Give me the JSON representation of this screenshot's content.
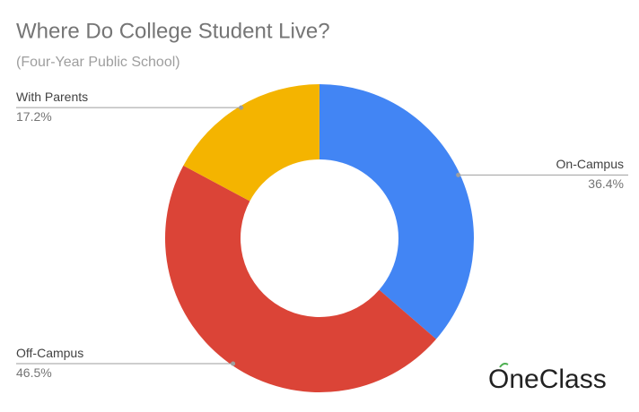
{
  "chart_data": {
    "type": "pie",
    "title": "Where Do College Student Live?",
    "subtitle": "(Four-Year Public School)",
    "categories": [
      "On-Campus",
      "Off-Campus",
      "With Parents"
    ],
    "values": [
      36.4,
      46.5,
      17.2
    ],
    "value_labels": [
      "36.4%",
      "46.5%",
      "17.2%"
    ],
    "colors": [
      "#4285f4",
      "#db4437",
      "#f4b400"
    ],
    "donut": true
  },
  "watermark": "OneClass"
}
